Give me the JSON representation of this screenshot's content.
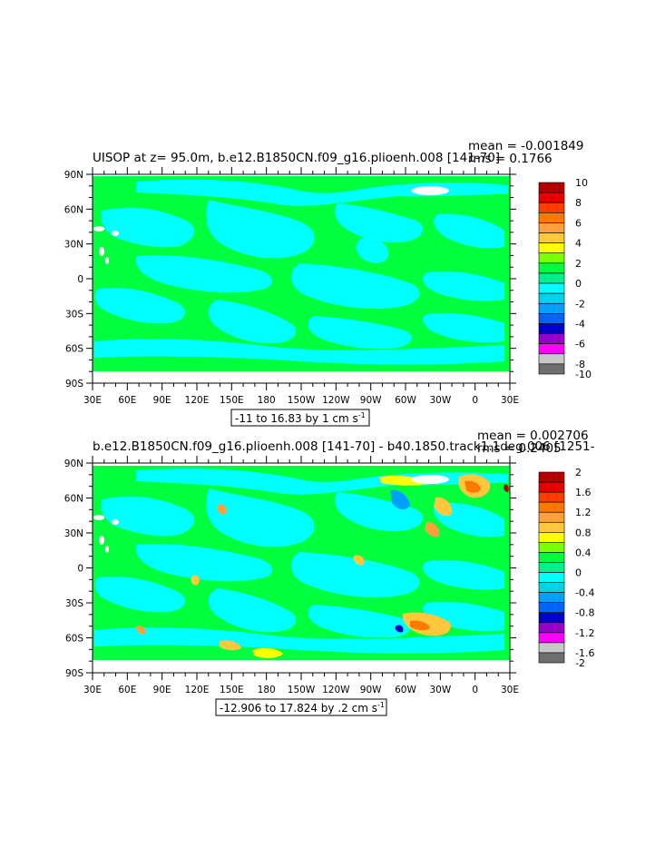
{
  "chart_data": [
    {
      "type": "heatmap",
      "title": "UISOP at z=  95.0m, b.e12.B1850CN.f09_g16.plioenh.008 [141-70]",
      "stats": {
        "mean": "mean = -0.001849",
        "rms": "rms = 0.1766"
      },
      "y_ticks": [
        "90N",
        "60N",
        "30N",
        "0",
        "30S",
        "60S",
        "90S"
      ],
      "x_ticks": [
        "30E",
        "60E",
        "90E",
        "120E",
        "150E",
        "180",
        "150W",
        "120W",
        "90W",
        "60W",
        "30W",
        "0",
        "30E"
      ],
      "range_label": "-11 to 16.83 by 1 cm s",
      "range_superscript": "-1",
      "colorbar": {
        "labels": [
          "10",
          "8",
          "6",
          "4",
          "2",
          "0",
          "-2",
          "-4",
          "-6",
          "-8",
          "-10"
        ],
        "colors": [
          "#b40000",
          "#e60000",
          "#ff3c00",
          "#ff7800",
          "#ffa03c",
          "#ffc83c",
          "#ffff00",
          "#78ff00",
          "#00ff3c",
          "#00f08c",
          "#00ffff",
          "#00d2f0",
          "#00a0ff",
          "#0064ff",
          "#0000c8",
          "#9600c8",
          "#ff00ff",
          "#c8c8c8",
          "#6e6e6e"
        ]
      }
    },
    {
      "type": "heatmap",
      "title": "b.e12.B1850CN.f09_g16.plioenh.008 [141-70] - b40.1850.track1.1deg.006 [1251-",
      "stats": {
        "mean": "mean = 0.002706",
        "rms": "rms = 0.2405"
      },
      "y_ticks": [
        "90N",
        "60N",
        "30N",
        "0",
        "30S",
        "60S",
        "90S"
      ],
      "x_ticks": [
        "30E",
        "60E",
        "90E",
        "120E",
        "150E",
        "180",
        "150W",
        "120W",
        "90W",
        "60W",
        "30W",
        "0",
        "30E"
      ],
      "range_label": "-12.906 to 17.824 by .2 cm s",
      "range_superscript": "-1",
      "colorbar": {
        "labels": [
          "2",
          "1.6",
          "1.2",
          "0.8",
          "0.4",
          "0",
          "-0.4",
          "-0.8",
          "-1.2",
          "-1.6",
          "-2"
        ],
        "colors": [
          "#b40000",
          "#e60000",
          "#ff3c00",
          "#ff7800",
          "#ffa03c",
          "#ffc83c",
          "#ffff00",
          "#78ff00",
          "#00ff3c",
          "#00f08c",
          "#00ffff",
          "#00d2f0",
          "#00a0ff",
          "#0064ff",
          "#0000c8",
          "#9600c8",
          "#ff00ff",
          "#c8c8c8",
          "#6e6e6e"
        ]
      }
    }
  ]
}
